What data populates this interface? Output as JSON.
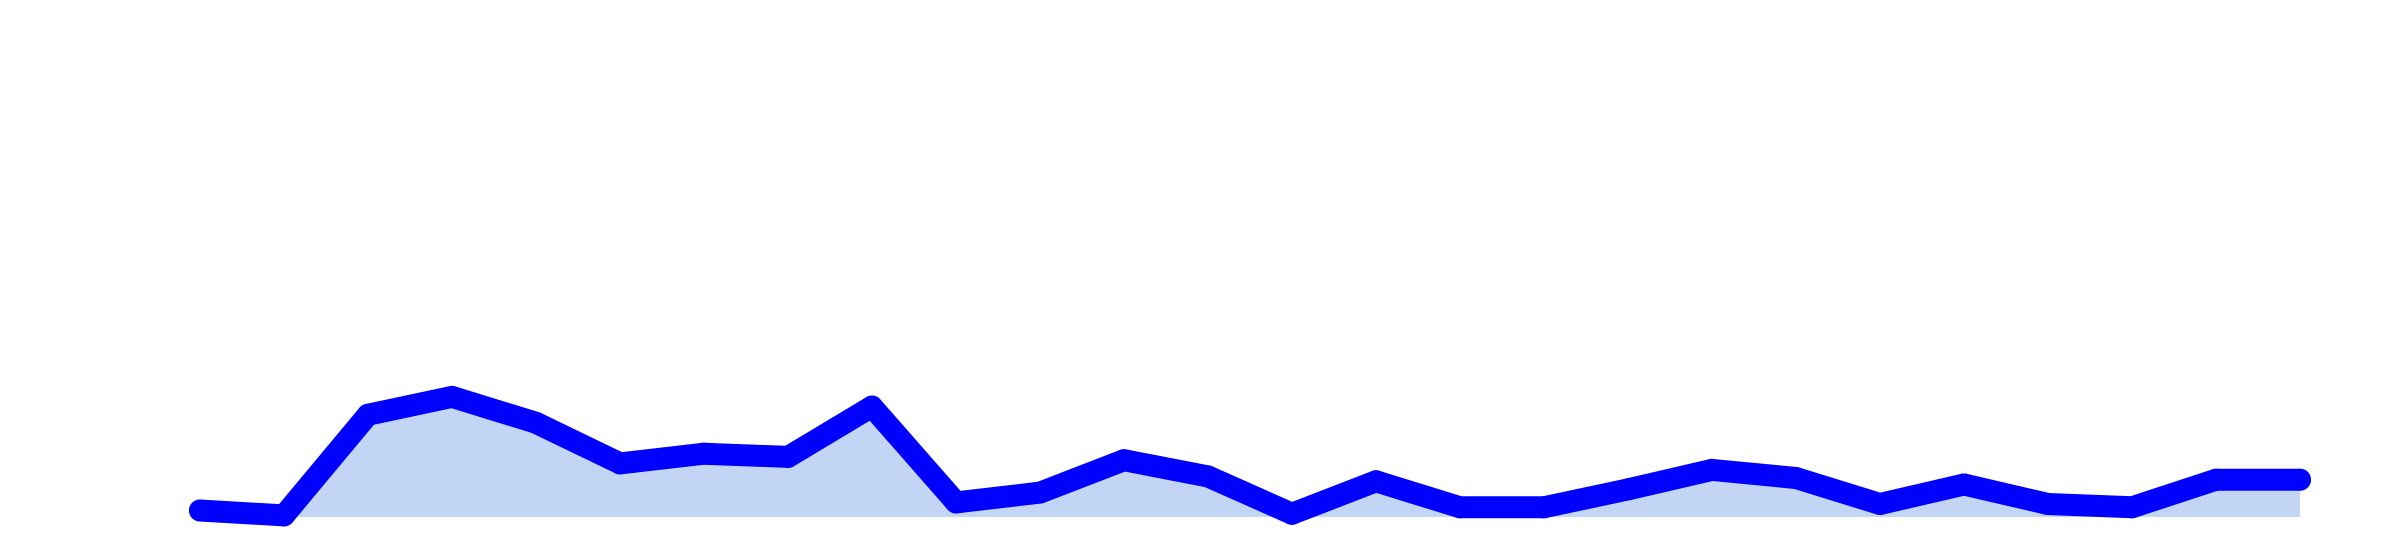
{
  "chart_data": {
    "type": "area",
    "title": "",
    "xlabel": "",
    "ylabel": "",
    "x": [
      1,
      2,
      3,
      4,
      5,
      6,
      7,
      8,
      9,
      10,
      11,
      12,
      13,
      14,
      15,
      16,
      17,
      18,
      19,
      20,
      21,
      22,
      23,
      24,
      25,
      26
    ],
    "series": [
      {
        "values": [
          0.4,
          0.1,
          6.3,
          7.4,
          5.8,
          3.3,
          3.9,
          3.7,
          6.8,
          0.9,
          1.5,
          3.5,
          2.5,
          0.2,
          2.2,
          0.6,
          0.6,
          1.7,
          2.9,
          2.4,
          0.8,
          2.0,
          0.8,
          0.6,
          2.3,
          2.3
        ]
      }
    ],
    "ylim": [
      0,
      30
    ],
    "axes_visible": false,
    "grid": false,
    "legend": "none",
    "line_color": "#0000ff",
    "fill_color": "#c2d5f5"
  }
}
